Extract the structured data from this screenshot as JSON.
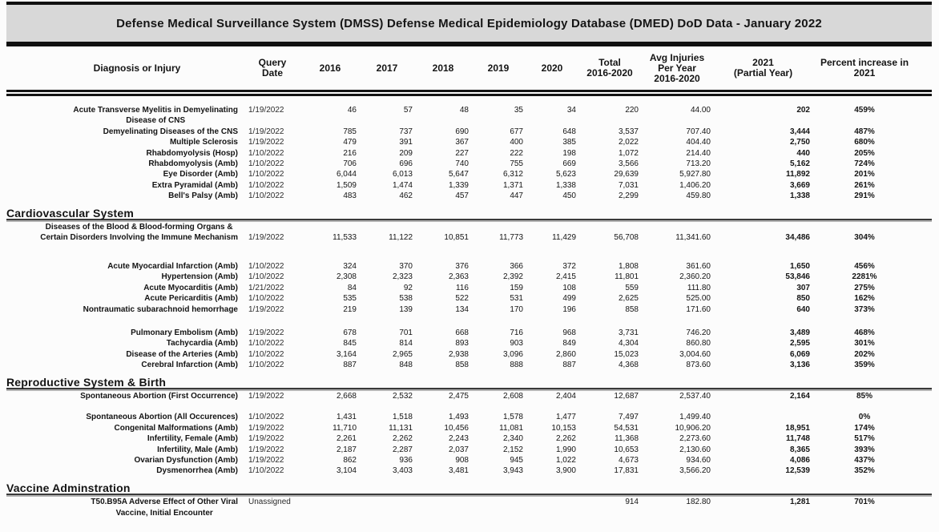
{
  "title": "Defense Medical Surveillance System (DMSS) Defense Medical Epidemiology Database (DMED) DoD Data - January 2022",
  "colors": {
    "title_bar_bg": "#d8d8d8",
    "rule": "#141414",
    "section_rule_shadow": "#b4b4b4",
    "text": "#141414",
    "page_bg": "#fcfcfc"
  },
  "columns": {
    "diagnosis": "Diagnosis or Injury",
    "query_date": "Query\nDate",
    "y2016": "2016",
    "y2017": "2017",
    "y2018": "2018",
    "y2019": "2019",
    "y2020": "2020",
    "total": "Total\n2016-2020",
    "avg": "Avg Injuries\nPer Year\n2016-2020",
    "y2021": "2021\n(Partial Year)",
    "pct": "Percent increase in\n2021"
  },
  "sections": [
    {
      "name": "",
      "rows": [
        {
          "diagnosis": "Acute Transverse Myelitis in Demyelinating\nDisease of CNS",
          "query_date": "1/19/2022",
          "y2016": "46",
          "y2017": "57",
          "y2018": "48",
          "y2019": "35",
          "y2020": "34",
          "total": "220",
          "avg": "44.00",
          "y2021": "202",
          "pct": "459%"
        },
        {
          "diagnosis": "Demyelinating Diseases of the CNS",
          "query_date": "1/19/2022",
          "y2016": "785",
          "y2017": "737",
          "y2018": "690",
          "y2019": "677",
          "y2020": "648",
          "total": "3,537",
          "avg": "707.40",
          "y2021": "3,444",
          "pct": "487%"
        },
        {
          "diagnosis": "Multiple Sclerosis",
          "query_date": "1/19/2022",
          "y2016": "479",
          "y2017": "391",
          "y2018": "367",
          "y2019": "400",
          "y2020": "385",
          "total": "2,022",
          "avg": "404.40",
          "y2021": "2,750",
          "pct": "680%"
        },
        {
          "diagnosis": "Rhabdomyolysis (Hosp)",
          "query_date": "1/10/2022",
          "y2016": "216",
          "y2017": "209",
          "y2018": "227",
          "y2019": "222",
          "y2020": "198",
          "total": "1,072",
          "avg": "214.40",
          "y2021": "440",
          "pct": "205%"
        },
        {
          "diagnosis": "Rhabdomyolysis (Amb)",
          "query_date": "1/10/2022",
          "y2016": "706",
          "y2017": "696",
          "y2018": "740",
          "y2019": "755",
          "y2020": "669",
          "total": "3,566",
          "avg": "713.20",
          "y2021": "5,162",
          "pct": "724%"
        },
        {
          "diagnosis": "Eye Disorder (Amb)",
          "query_date": "1/10/2022",
          "y2016": "6,044",
          "y2017": "6,013",
          "y2018": "5,647",
          "y2019": "6,312",
          "y2020": "5,623",
          "total": "29,639",
          "avg": "5,927.80",
          "y2021": "11,892",
          "pct": "201%"
        },
        {
          "diagnosis": "Extra Pyramidal (Amb)",
          "query_date": "1/10/2022",
          "y2016": "1,509",
          "y2017": "1,474",
          "y2018": "1,339",
          "y2019": "1,371",
          "y2020": "1,338",
          "total": "7,031",
          "avg": "1,406.20",
          "y2021": "3,669",
          "pct": "261%"
        },
        {
          "diagnosis": "Bell's Palsy (Amb)",
          "query_date": "1/10/2022",
          "y2016": "483",
          "y2017": "462",
          "y2018": "457",
          "y2019": "447",
          "y2020": "450",
          "total": "2,299",
          "avg": "459.80",
          "y2021": "1,338",
          "pct": "291%"
        }
      ]
    },
    {
      "name": "Cardiovascular System",
      "rows": [
        {
          "diagnosis": "Diseases of the Blood & Blood-forming Organs &\nCertain Disorders Involving the Immune Mechanism",
          "query_date": "1/19/2022",
          "y2016": "11,533",
          "y2017": "11,122",
          "y2018": "10,851",
          "y2019": "11,773",
          "y2020": "11,429",
          "total": "56,708",
          "avg": "11,341.60",
          "y2021": "34,486",
          "pct": "304%",
          "valign": "bottom"
        },
        {
          "spacer": true,
          "h": 22
        },
        {
          "diagnosis": "Acute Myocardial Infarction (Amb)",
          "query_date": "1/10/2022",
          "y2016": "324",
          "y2017": "370",
          "y2018": "376",
          "y2019": "366",
          "y2020": "372",
          "total": "1,808",
          "avg": "361.60",
          "y2021": "1,650",
          "pct": "456%"
        },
        {
          "diagnosis": "Hypertension (Amb)",
          "query_date": "1/10/2022",
          "y2016": "2,308",
          "y2017": "2,323",
          "y2018": "2,363",
          "y2019": "2,392",
          "y2020": "2,415",
          "total": "11,801",
          "avg": "2,360.20",
          "y2021": "53,846",
          "pct": "2281%"
        },
        {
          "diagnosis": "Acute Myocarditis (Amb)",
          "query_date": "1/21/2022",
          "y2016": "84",
          "y2017": "92",
          "y2018": "116",
          "y2019": "159",
          "y2020": "108",
          "total": "559",
          "avg": "111.80",
          "y2021": "307",
          "pct": "275%"
        },
        {
          "diagnosis": "Acute Pericarditis (Amb)",
          "query_date": "1/10/2022",
          "y2016": "535",
          "y2017": "538",
          "y2018": "522",
          "y2019": "531",
          "y2020": "499",
          "total": "2,625",
          "avg": "525.00",
          "y2021": "850",
          "pct": "162%"
        },
        {
          "diagnosis": "Nontraumatic subarachnoid hemorrhage",
          "query_date": "1/19/2022",
          "y2016": "219",
          "y2017": "139",
          "y2018": "134",
          "y2019": "170",
          "y2020": "196",
          "total": "858",
          "avg": "171.60",
          "y2021": "640",
          "pct": "373%"
        },
        {
          "spacer": true,
          "h": 16
        },
        {
          "diagnosis": "Pulmonary Embolism (Amb)",
          "query_date": "1/19/2022",
          "y2016": "678",
          "y2017": "701",
          "y2018": "668",
          "y2019": "716",
          "y2020": "968",
          "total": "3,731",
          "avg": "746.20",
          "y2021": "3,489",
          "pct": "468%"
        },
        {
          "diagnosis": "Tachycardia (Amb)",
          "query_date": "1/10/2022",
          "y2016": "845",
          "y2017": "814",
          "y2018": "893",
          "y2019": "903",
          "y2020": "849",
          "total": "4,304",
          "avg": "860.80",
          "y2021": "2,595",
          "pct": "301%"
        },
        {
          "diagnosis": "Disease of the Arteries (Amb)",
          "query_date": "1/10/2022",
          "y2016": "3,164",
          "y2017": "2,965",
          "y2018": "2,938",
          "y2019": "3,096",
          "y2020": "2,860",
          "total": "15,023",
          "avg": "3,004.60",
          "y2021": "6,069",
          "pct": "202%"
        },
        {
          "diagnosis": "Cerebral Infarction (Amb)",
          "query_date": "1/10/2022",
          "y2016": "887",
          "y2017": "848",
          "y2018": "858",
          "y2019": "888",
          "y2020": "887",
          "total": "4,368",
          "avg": "873.60",
          "y2021": "3,136",
          "pct": "359%"
        }
      ]
    },
    {
      "name": "Reproductive System & Birth",
      "rows": [
        {
          "diagnosis": "Spontaneous Abortion (First Occurrence)",
          "query_date": "1/19/2022",
          "y2016": "2,668",
          "y2017": "2,532",
          "y2018": "2,475",
          "y2019": "2,608",
          "y2020": "2,404",
          "total": "12,687",
          "avg": "2,537.40",
          "y2021": "2,164",
          "pct": "85%"
        },
        {
          "spacer": true,
          "h": 13
        },
        {
          "diagnosis": "Spontaneous Abortion (All Occurences)",
          "query_date": "1/10/2022",
          "y2016": "1,431",
          "y2017": "1,518",
          "y2018": "1,493",
          "y2019": "1,578",
          "y2020": "1,477",
          "total": "7,497",
          "avg": "1,499.40",
          "y2021": "",
          "pct": "0%"
        },
        {
          "diagnosis": "Congenital Malformations (Amb)",
          "query_date": "1/19/2022",
          "y2016": "11,710",
          "y2017": "11,131",
          "y2018": "10,456",
          "y2019": "11,081",
          "y2020": "10,153",
          "total": "54,531",
          "avg": "10,906.20",
          "y2021": "18,951",
          "pct": "174%"
        },
        {
          "diagnosis": "Infertility, Female (Amb)",
          "query_date": "1/19/2022",
          "y2016": "2,261",
          "y2017": "2,262",
          "y2018": "2,243",
          "y2019": "2,340",
          "y2020": "2,262",
          "total": "11,368",
          "avg": "2,273.60",
          "y2021": "11,748",
          "pct": "517%"
        },
        {
          "diagnosis": "Infertility, Male (Amb)",
          "query_date": "1/19/2022",
          "y2016": "2,187",
          "y2017": "2,287",
          "y2018": "2,037",
          "y2019": "2,152",
          "y2020": "1,990",
          "total": "10,653",
          "avg": "2,130.60",
          "y2021": "8,365",
          "pct": "393%"
        },
        {
          "diagnosis": "Ovarian Dysfunction (Amb)",
          "query_date": "1/19/2022",
          "y2016": "862",
          "y2017": "936",
          "y2018": "908",
          "y2019": "945",
          "y2020": "1,022",
          "total": "4,673",
          "avg": "934.60",
          "y2021": "4,086",
          "pct": "437%"
        },
        {
          "diagnosis": "Dysmenorrhea (Amb)",
          "query_date": "1/10/2022",
          "y2016": "3,104",
          "y2017": "3,403",
          "y2018": "3,481",
          "y2019": "3,943",
          "y2020": "3,900",
          "total": "17,831",
          "avg": "3,566.20",
          "y2021": "12,539",
          "pct": "352%"
        }
      ]
    },
    {
      "name": "Vaccine Adminstration",
      "rows": [
        {
          "diagnosis": "T50.B95A Adverse Effect of Other Viral\nVaccine, Initial Encounter",
          "query_date": "Unassigned",
          "y2016": "",
          "y2017": "",
          "y2018": "",
          "y2019": "",
          "y2020": "",
          "total": "914",
          "avg": "182.80",
          "y2021": "1,281",
          "pct": "701%"
        }
      ]
    }
  ]
}
